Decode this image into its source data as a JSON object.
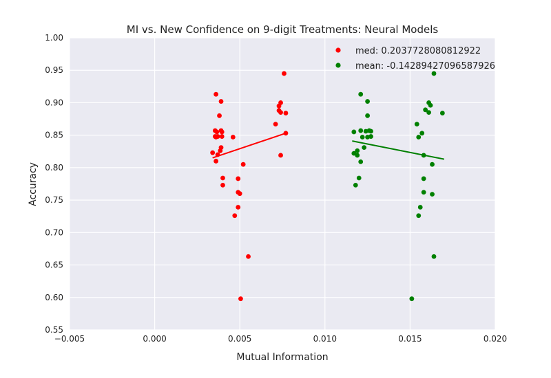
{
  "chart_data": {
    "type": "scatter",
    "title": "MI vs. New Confidence on 9-digit Treatments: Neural Models",
    "xlabel": "Mutual Information",
    "ylabel": "Accuracy",
    "xlim": [
      -0.005,
      0.02
    ],
    "ylim": [
      0.55,
      1.0
    ],
    "x_ticks": [
      -0.005,
      0.0,
      0.005,
      0.01,
      0.015,
      0.02
    ],
    "x_tick_labels": [
      "−0.005",
      "0.000",
      "0.005",
      "0.010",
      "0.015",
      "0.020"
    ],
    "y_ticks": [
      0.55,
      0.6,
      0.65,
      0.7,
      0.75,
      0.8,
      0.85,
      0.9,
      0.95,
      1.0
    ],
    "y_tick_labels": [
      "0.55",
      "0.60",
      "0.65",
      "0.70",
      "0.75",
      "0.80",
      "0.85",
      "0.90",
      "0.95",
      "1.00"
    ],
    "grid": true,
    "legend_position": "top-right",
    "background": "#eaeaf2",
    "series": [
      {
        "name": "med: 0.2037728080812922",
        "color": "#ff0000",
        "points": [
          [
            0.0036,
            0.913
          ],
          [
            0.0039,
            0.902
          ],
          [
            0.0038,
            0.88
          ],
          [
            0.00355,
            0.857
          ],
          [
            0.00365,
            0.855
          ],
          [
            0.0039,
            0.857
          ],
          [
            0.00395,
            0.855
          ],
          [
            0.00355,
            0.848
          ],
          [
            0.0036,
            0.847
          ],
          [
            0.0037,
            0.848
          ],
          [
            0.00395,
            0.848
          ],
          [
            0.0046,
            0.847
          ],
          [
            0.0039,
            0.831
          ],
          [
            0.00385,
            0.826
          ],
          [
            0.0034,
            0.823
          ],
          [
            0.0037,
            0.82
          ],
          [
            0.0036,
            0.81
          ],
          [
            0.0052,
            0.805
          ],
          [
            0.004,
            0.784
          ],
          [
            0.0049,
            0.783
          ],
          [
            0.004,
            0.773
          ],
          [
            0.0049,
            0.762
          ],
          [
            0.005,
            0.76
          ],
          [
            0.0049,
            0.739
          ],
          [
            0.0047,
            0.726
          ],
          [
            0.0055,
            0.663
          ],
          [
            0.00505,
            0.598
          ],
          [
            0.0076,
            0.945
          ],
          [
            0.0074,
            0.9
          ],
          [
            0.0073,
            0.895
          ],
          [
            0.0073,
            0.888
          ],
          [
            0.0074,
            0.885
          ],
          [
            0.0077,
            0.884
          ],
          [
            0.0071,
            0.867
          ],
          [
            0.0077,
            0.853
          ],
          [
            0.0074,
            0.819
          ]
        ],
        "fit_line": [
          [
            0.0034,
            0.815
          ],
          [
            0.0077,
            0.853
          ]
        ]
      },
      {
        "name": "mean: -0.14289427096587926",
        "color": "#008000",
        "points": [
          [
            0.0164,
            0.945
          ],
          [
            0.0121,
            0.913
          ],
          [
            0.0125,
            0.902
          ],
          [
            0.0161,
            0.9
          ],
          [
            0.0162,
            0.896
          ],
          [
            0.0159,
            0.889
          ],
          [
            0.0161,
            0.885
          ],
          [
            0.0169,
            0.884
          ],
          [
            0.0125,
            0.88
          ],
          [
            0.0154,
            0.867
          ],
          [
            0.0117,
            0.855
          ],
          [
            0.0121,
            0.857
          ],
          [
            0.0124,
            0.856
          ],
          [
            0.0126,
            0.857
          ],
          [
            0.0127,
            0.856
          ],
          [
            0.0157,
            0.853
          ],
          [
            0.0122,
            0.847
          ],
          [
            0.0125,
            0.847
          ],
          [
            0.0127,
            0.848
          ],
          [
            0.0155,
            0.847
          ],
          [
            0.0123,
            0.831
          ],
          [
            0.0119,
            0.826
          ],
          [
            0.0117,
            0.822
          ],
          [
            0.0119,
            0.819
          ],
          [
            0.0158,
            0.819
          ],
          [
            0.0121,
            0.809
          ],
          [
            0.0163,
            0.805
          ],
          [
            0.012,
            0.784
          ],
          [
            0.0158,
            0.783
          ],
          [
            0.0118,
            0.773
          ],
          [
            0.0158,
            0.762
          ],
          [
            0.0163,
            0.759
          ],
          [
            0.0156,
            0.739
          ],
          [
            0.0155,
            0.726
          ],
          [
            0.0164,
            0.663
          ],
          [
            0.0151,
            0.598
          ]
        ],
        "fit_line": [
          [
            0.0116,
            0.841
          ],
          [
            0.017,
            0.813
          ]
        ]
      }
    ]
  }
}
